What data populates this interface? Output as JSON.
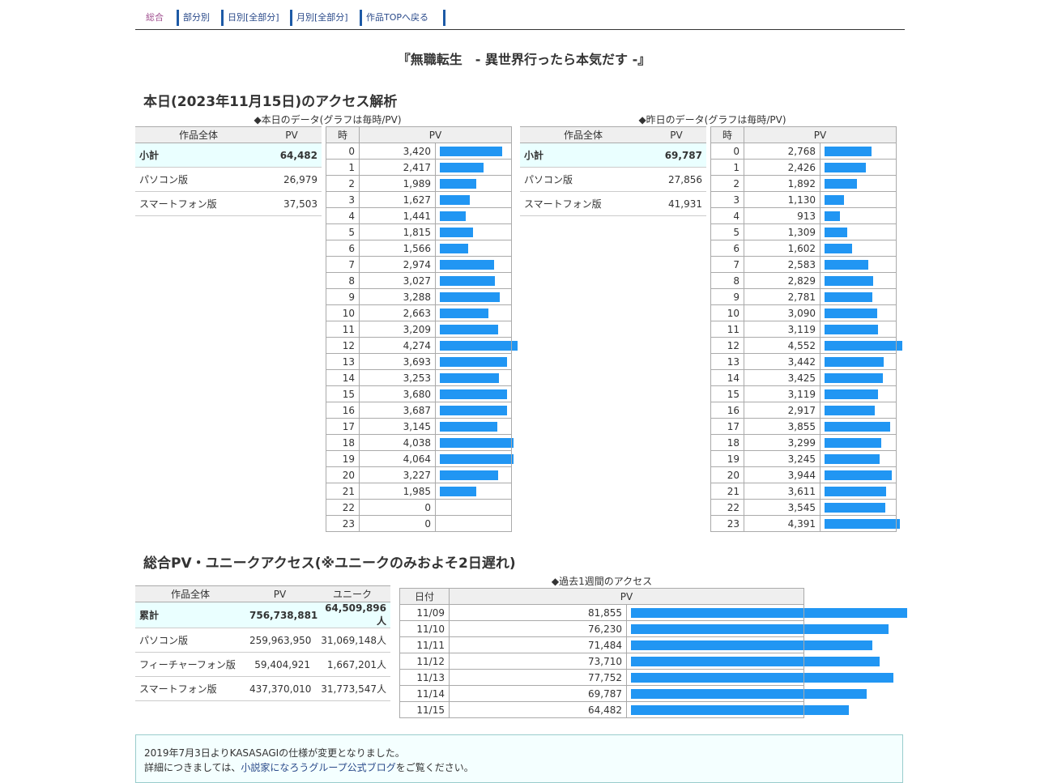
{
  "nav": [
    {
      "label": "総合",
      "active": true
    },
    {
      "label": "部分別"
    },
    {
      "label": "日別[全部分]"
    },
    {
      "label": "月別[全部分]"
    },
    {
      "label": "作品TOPへ戻る"
    }
  ],
  "work_title": "『無職転生　- 異世界行ったら本気だす -』",
  "today": {
    "heading": "本日(2023年11月15日)のアクセス解析",
    "caption": "◆本日のデータ(グラフは毎時/PV)",
    "summary_headers": [
      "作品全体",
      "PV"
    ],
    "summary": [
      {
        "label": "小計",
        "value": "64,482"
      },
      {
        "label": "パソコン版",
        "value": "26,979"
      },
      {
        "label": "スマートフォン版",
        "value": "37,503"
      }
    ],
    "hourly_headers": [
      "時",
      "PV"
    ],
    "hourly": [
      3420,
      2417,
      1989,
      1627,
      1441,
      1815,
      1566,
      2974,
      3027,
      3288,
      2663,
      3209,
      4274,
      3693,
      3253,
      3680,
      3687,
      3145,
      4038,
      4064,
      3227,
      1985,
      0,
      0
    ]
  },
  "yesterday": {
    "caption": "◆昨日のデータ(グラフは毎時/PV)",
    "summary_headers": [
      "作品全体",
      "PV"
    ],
    "summary": [
      {
        "label": "小計",
        "value": "69,787"
      },
      {
        "label": "パソコン版",
        "value": "27,856"
      },
      {
        "label": "スマートフォン版",
        "value": "41,931"
      }
    ],
    "hourly_headers": [
      "時",
      "PV"
    ],
    "hourly": [
      2768,
      2426,
      1892,
      1130,
      913,
      1309,
      1602,
      2583,
      2829,
      2781,
      3090,
      3119,
      4552,
      3442,
      3425,
      3119,
      2917,
      3855,
      3299,
      3245,
      3944,
      3611,
      3545,
      4391
    ]
  },
  "total": {
    "heading": "総合PV・ユニークアクセス(※ユニークのみおよそ2日遅れ)",
    "headers": [
      "作品全体",
      "PV",
      "ユニーク"
    ],
    "rows": [
      {
        "label": "累計",
        "pv": "756,738,881",
        "unique": "64,509,896人"
      },
      {
        "label": "パソコン版",
        "pv": "259,963,950",
        "unique": "31,069,148人"
      },
      {
        "label": "フィーチャーフォン版",
        "pv": "59,404,921",
        "unique": "1,667,201人"
      },
      {
        "label": "スマートフォン版",
        "pv": "437,370,010",
        "unique": "31,773,547人"
      }
    ]
  },
  "week": {
    "caption": "◆過去1週間のアクセス",
    "headers": [
      "日付",
      "PV"
    ],
    "rows": [
      {
        "date": "11/09",
        "pv": 81855
      },
      {
        "date": "11/10",
        "pv": 76230
      },
      {
        "date": "11/11",
        "pv": 71484
      },
      {
        "date": "11/12",
        "pv": 73710
      },
      {
        "date": "11/13",
        "pv": 77752
      },
      {
        "date": "11/14",
        "pv": 69787
      },
      {
        "date": "11/15",
        "pv": 64482
      }
    ]
  },
  "notice": {
    "line1": "2019年7月3日よりKASASAGIの仕様が変更となりました。",
    "line2_prefix": "詳細につきましては、",
    "link": "小説家になろうグループ公式ブログ",
    "line2_suffix": "をご覧ください。"
  },
  "colors": {
    "bar": "#2196f3",
    "highlight": "#eaffff",
    "header": "#efefef"
  }
}
